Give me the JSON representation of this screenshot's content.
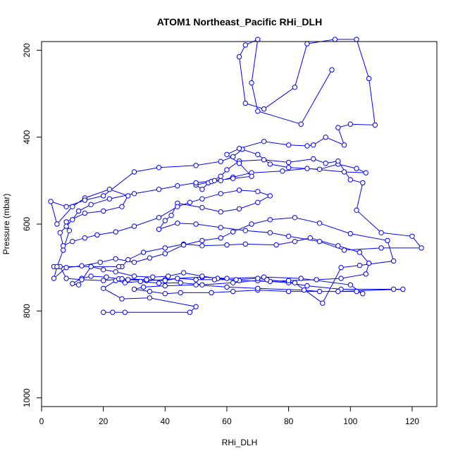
{
  "chart_data": {
    "type": "line",
    "title": "ATOM1 Northeast_Pacific RHi_DLH",
    "xlabel": "RHi_DLH",
    "ylabel": "Pressure (mbar)",
    "xlim": [
      0,
      128
    ],
    "ylim": [
      1020,
      180
    ],
    "y_reversed": true,
    "x_ticks": [
      0,
      20,
      40,
      60,
      80,
      100,
      120
    ],
    "y_ticks": [
      200,
      400,
      600,
      800,
      1000
    ],
    "series_color": "#0000ff",
    "marker": "open-circle",
    "grid": false,
    "legend": "none",
    "series": [
      {
        "values": [
          [
            20,
            803
          ],
          [
            23,
            803
          ],
          [
            27,
            803
          ],
          [
            48,
            803
          ],
          [
            50,
            790
          ],
          [
            35,
            770
          ],
          [
            26,
            772
          ],
          [
            20,
            748
          ],
          [
            24,
            730
          ],
          [
            27,
            735
          ],
          [
            32,
            732
          ],
          [
            38,
            736
          ],
          [
            45,
            735
          ],
          [
            52,
            740
          ],
          [
            62,
            735
          ],
          [
            70,
            730
          ],
          [
            80,
            735
          ],
          [
            86,
            742
          ],
          [
            97,
            750
          ],
          [
            114,
            750
          ],
          [
            117,
            750
          ],
          [
            96,
            755
          ],
          [
            80,
            755
          ],
          [
            70,
            752
          ],
          [
            62,
            755
          ],
          [
            55,
            758
          ],
          [
            45,
            758
          ],
          [
            40,
            760
          ],
          [
            35,
            755
          ],
          [
            30,
            750
          ],
          [
            33,
            745
          ],
          [
            40,
            742
          ],
          [
            50,
            740
          ],
          [
            60,
            745
          ],
          [
            70,
            748
          ],
          [
            85,
            752
          ],
          [
            90,
            755
          ],
          [
            102,
            755
          ],
          [
            104,
            760
          ],
          [
            100,
            740
          ],
          [
            84,
            725
          ],
          [
            72,
            722
          ],
          [
            60,
            725
          ],
          [
            52,
            722
          ],
          [
            44,
            725
          ],
          [
            40,
            728
          ],
          [
            34,
            730
          ],
          [
            28,
            728
          ],
          [
            25,
            726
          ],
          [
            21,
            722
          ],
          [
            16,
            720
          ],
          [
            13,
            725
          ],
          [
            10,
            737
          ],
          [
            12,
            740
          ],
          [
            16,
            698
          ],
          [
            20,
            705
          ],
          [
            24,
            710
          ],
          [
            30,
            720
          ],
          [
            36,
            722
          ],
          [
            41,
            720
          ],
          [
            46,
            712
          ],
          [
            52,
            720
          ],
          [
            57,
            725
          ],
          [
            64,
            730
          ],
          [
            74,
            732
          ],
          [
            80,
            730
          ],
          [
            89,
            728
          ],
          [
            97,
            725
          ],
          [
            105,
            715
          ],
          [
            106,
            690
          ],
          [
            103,
            665
          ],
          [
            96,
            650
          ],
          [
            87,
            632
          ],
          [
            82,
            640
          ],
          [
            76,
            648
          ],
          [
            66,
            646
          ],
          [
            60,
            648
          ],
          [
            52,
            650
          ],
          [
            46,
            646
          ],
          [
            40,
            655
          ],
          [
            33,
            665
          ],
          [
            28,
            682
          ],
          [
            26,
            698
          ],
          [
            25,
            698
          ],
          [
            4,
            698
          ],
          [
            6,
            698
          ],
          [
            8,
            725
          ],
          [
            13,
            728
          ],
          [
            20,
            730
          ],
          [
            26,
            726
          ],
          [
            34,
            728
          ],
          [
            40,
            730
          ],
          [
            44,
            725
          ],
          [
            50,
            728
          ],
          [
            56,
            728
          ],
          [
            63,
            728
          ],
          [
            70,
            725
          ],
          [
            73,
            728
          ],
          [
            82,
            735
          ],
          [
            91,
            782
          ],
          [
            97,
            700
          ],
          [
            103,
            695
          ],
          [
            114,
            685
          ],
          [
            112,
            638
          ],
          [
            100,
            622
          ],
          [
            90,
            598
          ],
          [
            82,
            585
          ],
          [
            74,
            590
          ],
          [
            68,
            600
          ],
          [
            62,
            618
          ],
          [
            58,
            632
          ],
          [
            52,
            638
          ],
          [
            46,
            648
          ],
          [
            40,
            668
          ],
          [
            35,
            678
          ],
          [
            30,
            688
          ],
          [
            24,
            680
          ],
          [
            19,
            688
          ],
          [
            13,
            696
          ],
          [
            8,
            700
          ],
          [
            4,
            725
          ],
          [
            5,
            698
          ],
          [
            7,
            660
          ],
          [
            9,
            615
          ],
          [
            8,
            595
          ],
          [
            14,
            575
          ],
          [
            20,
            570
          ],
          [
            26,
            560
          ],
          [
            28,
            535
          ],
          [
            22,
            520
          ],
          [
            14,
            540
          ],
          [
            10,
            560
          ],
          [
            5,
            600
          ],
          [
            3,
            548
          ],
          [
            8,
            560
          ],
          [
            14,
            545
          ],
          [
            20,
            535
          ],
          [
            30,
            480
          ],
          [
            38,
            470
          ],
          [
            50,
            465
          ],
          [
            58,
            456
          ],
          [
            62,
            445
          ],
          [
            65,
            428
          ],
          [
            70,
            440
          ],
          [
            74,
            462
          ],
          [
            80,
            470
          ],
          [
            90,
            474
          ],
          [
            96,
            462
          ],
          [
            102,
            472
          ],
          [
            105,
            482
          ],
          [
            98,
            480
          ],
          [
            86,
            472
          ],
          [
            78,
            478
          ],
          [
            68,
            482
          ],
          [
            62,
            492
          ],
          [
            58,
            500
          ],
          [
            54,
            505
          ],
          [
            52,
            520
          ],
          [
            50,
            510
          ],
          [
            55,
            502
          ],
          [
            58,
            490
          ],
          [
            60,
            475
          ],
          [
            64,
            455
          ],
          [
            72,
            452
          ],
          [
            80,
            458
          ],
          [
            88,
            450
          ],
          [
            92,
            460
          ],
          [
            96,
            455
          ],
          [
            100,
            498
          ],
          [
            104,
            505
          ],
          [
            102,
            568
          ],
          [
            110,
            620
          ],
          [
            120,
            628
          ],
          [
            123,
            655
          ],
          [
            110,
            655
          ],
          [
            98,
            660
          ],
          [
            90,
            640
          ],
          [
            80,
            628
          ],
          [
            74,
            620
          ],
          [
            66,
            615
          ],
          [
            58,
            608
          ],
          [
            50,
            600
          ],
          [
            44,
            598
          ],
          [
            38,
            612
          ],
          [
            40,
            592
          ],
          [
            42,
            580
          ],
          [
            44,
            552
          ],
          [
            52,
            562
          ],
          [
            58,
            572
          ],
          [
            64,
            565
          ],
          [
            70,
            550
          ],
          [
            74,
            535
          ],
          [
            70,
            525
          ],
          [
            64,
            522
          ],
          [
            58,
            530
          ],
          [
            52,
            542
          ],
          [
            48,
            550
          ],
          [
            44,
            560
          ],
          [
            38,
            585
          ],
          [
            30,
            605
          ],
          [
            24,
            618
          ],
          [
            18,
            625
          ],
          [
            14,
            632
          ],
          [
            10,
            640
          ],
          [
            7,
            650
          ],
          [
            6,
            620
          ],
          [
            8,
            605
          ],
          [
            10,
            590
          ],
          [
            12,
            570
          ],
          [
            16,
            555
          ],
          [
            22,
            542
          ],
          [
            30,
            530
          ],
          [
            38,
            520
          ],
          [
            44,
            512
          ],
          [
            50,
            505
          ],
          [
            56,
            500
          ],
          [
            62,
            495
          ],
          [
            68,
            490
          ],
          [
            64,
            460
          ],
          [
            60,
            440
          ],
          [
            64,
            426
          ],
          [
            72,
            410
          ],
          [
            80,
            418
          ],
          [
            86,
            420
          ],
          [
            88,
            418
          ],
          [
            92,
            400
          ],
          [
            98,
            418
          ],
          [
            96,
            378
          ],
          [
            100,
            370
          ],
          [
            108,
            372
          ],
          [
            106,
            265
          ],
          [
            102,
            175
          ],
          [
            95,
            175
          ],
          [
            86,
            185
          ],
          [
            82,
            285
          ],
          [
            72,
            335
          ],
          [
            66,
            322
          ],
          [
            64,
            215
          ],
          [
            66,
            188
          ],
          [
            70,
            175
          ],
          [
            68,
            275
          ],
          [
            70,
            340
          ],
          [
            84,
            370
          ],
          [
            94,
            245
          ]
        ]
      }
    ]
  }
}
